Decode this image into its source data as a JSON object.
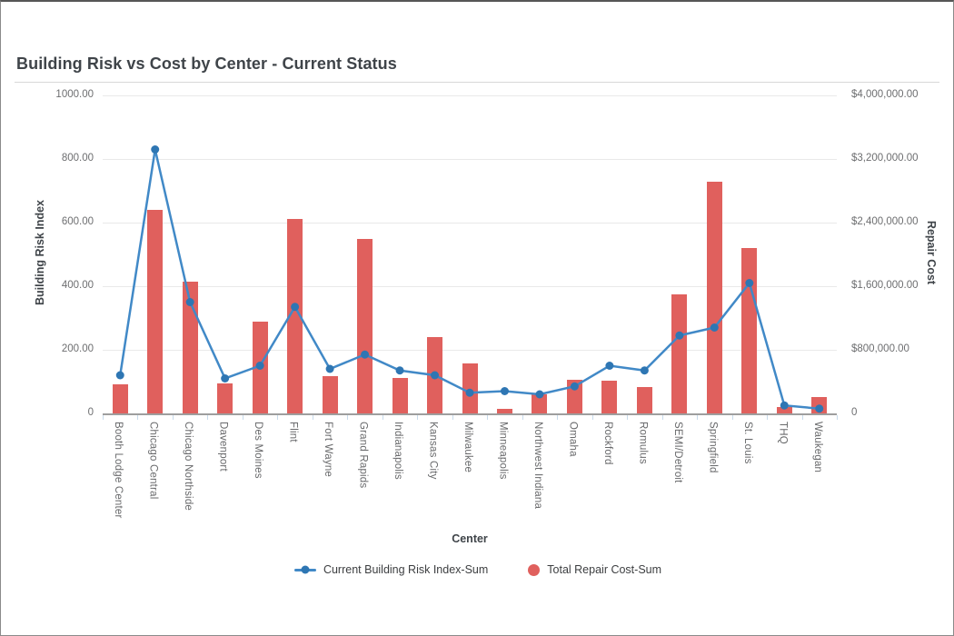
{
  "header": {
    "title": "Building Risk vs Cost by Center - Current Status"
  },
  "chart_data": {
    "type": "combo-bar-line",
    "title": "Building Risk vs Cost by Center - Current Status",
    "xlabel": "Center",
    "legend_position": "bottom",
    "grid": true,
    "y_left": {
      "label": "Building Risk Index",
      "range": [
        0,
        1000
      ],
      "ticks": [
        {
          "label": "1000.00",
          "value": 1000
        },
        {
          "label": "800.00",
          "value": 800
        },
        {
          "label": "600.00",
          "value": 600
        },
        {
          "label": "400.00",
          "value": 400
        },
        {
          "label": "200.00",
          "value": 200
        },
        {
          "label": "0",
          "value": 0
        }
      ]
    },
    "y_right": {
      "label": "Repair Cost",
      "range": [
        0,
        4000000
      ],
      "ticks": [
        {
          "label": "$4,000,000.00",
          "value": 4000000
        },
        {
          "label": "$3,200,000.00",
          "value": 3200000
        },
        {
          "label": "$2,400,000.00",
          "value": 2400000
        },
        {
          "label": "$1,600,000.00",
          "value": 1600000
        },
        {
          "label": "$800,000.00",
          "value": 800000
        },
        {
          "label": "0",
          "value": 0
        }
      ]
    },
    "categories": [
      "Booth Lodge Center",
      "Chicago Central",
      "Chicago Northside",
      "Davenport",
      "Des Moines",
      "Flint",
      "Fort Wayne",
      "Grand Rapids",
      "Indianapolis",
      "Kansas City",
      "Milwaukee",
      "Minneapolis",
      "Northwest Indiana",
      "Omaha",
      "Rockford",
      "Romulus",
      "SEMI/Detroit",
      "Springfield",
      "St. Louis",
      "THQ",
      "Waukegan"
    ],
    "series": [
      {
        "name": "Current Building Risk Index-Sum",
        "type": "line",
        "axis": "left",
        "color": "#4189c7",
        "marker_color": "#2e76b3",
        "values": [
          120,
          830,
          350,
          110,
          150,
          335,
          140,
          185,
          135,
          120,
          65,
          70,
          60,
          85,
          150,
          135,
          245,
          270,
          410,
          25,
          15
        ]
      },
      {
        "name": "Total Repair Cost-Sum",
        "type": "bar",
        "axis": "right",
        "color": "#e0605d",
        "values": [
          370000,
          2560000,
          1660000,
          380000,
          1150000,
          2450000,
          470000,
          2200000,
          450000,
          960000,
          630000,
          60000,
          235000,
          425000,
          410000,
          330000,
          1500000,
          2920000,
          2080000,
          80000,
          205000
        ]
      }
    ]
  }
}
